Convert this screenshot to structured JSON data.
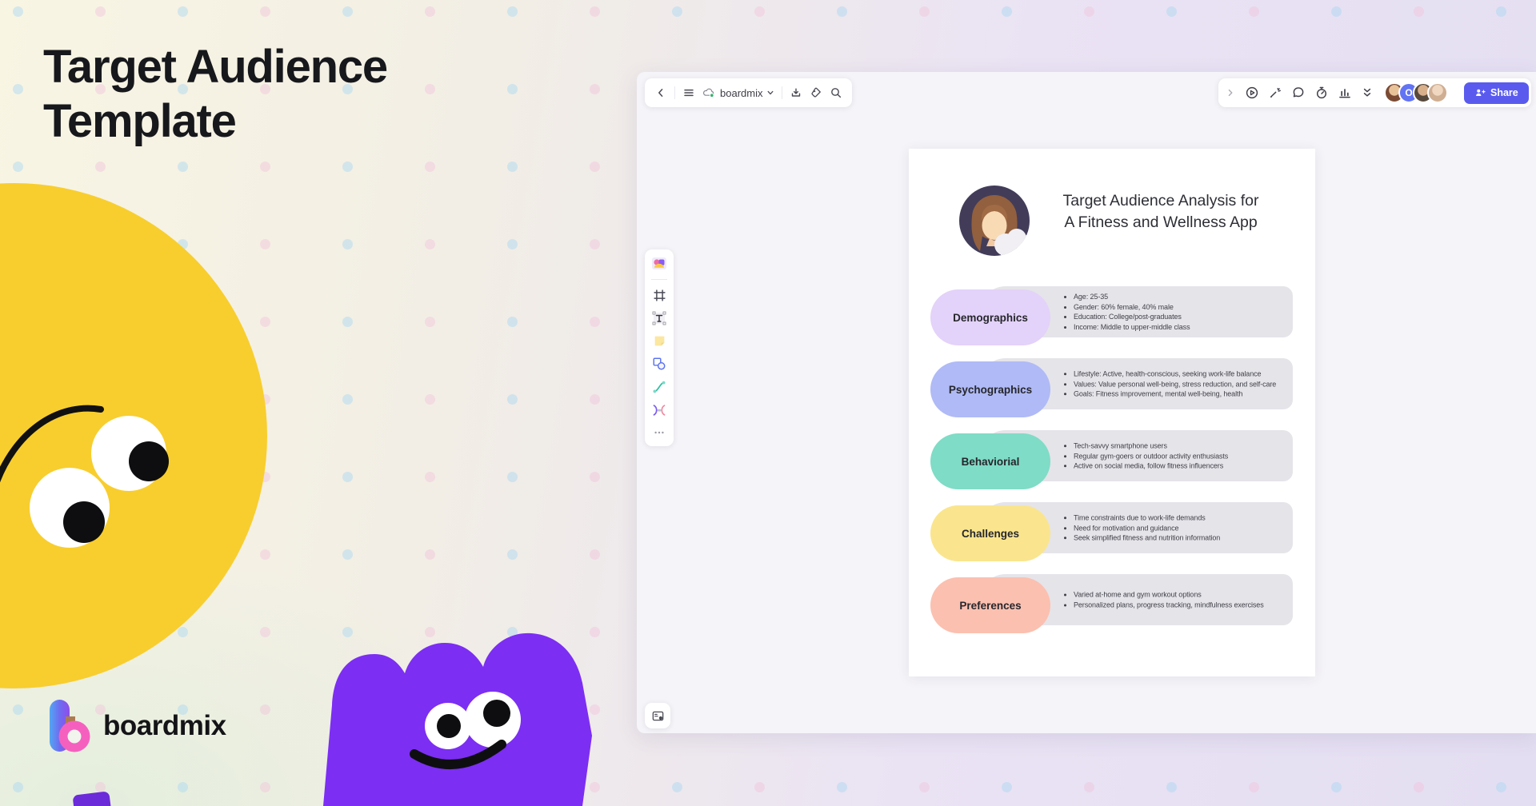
{
  "hero": {
    "title_line1": "Target Audience",
    "title_line2": "Template",
    "brand": "boardmix"
  },
  "app": {
    "topbar": {
      "board_name": "boardmix",
      "icons": [
        "back-icon",
        "menu-icon",
        "cloud-sync-icon",
        "chevron-down-icon",
        "export-icon",
        "tag-icon",
        "search-icon"
      ]
    },
    "right_toolbar": {
      "icons": [
        "collapse-icon",
        "play-icon",
        "laser-pointer-icon",
        "comment-icon",
        "timer-icon",
        "chart-icon",
        "double-chevron-down-icon"
      ],
      "avatars": [
        {
          "type": "photo",
          "tone": "#7a4a33",
          "skin": "#e8c39a"
        },
        {
          "type": "initial",
          "label": "O",
          "color": "#6273F3"
        },
        {
          "type": "photo",
          "tone": "#57493c",
          "skin": "#d9b08c"
        },
        {
          "type": "photo",
          "tone": "#cfae92",
          "skin": "#f0d7c0"
        }
      ],
      "share_label": "Share",
      "help_label": "?"
    },
    "left_toolbar": {
      "icons": [
        "templates-icon",
        "frame-icon",
        "text-icon",
        "sticky-note-icon",
        "shape-icon",
        "connector-icon",
        "mindmap-icon",
        "more-icon"
      ]
    },
    "board": {
      "title_line1": "Target Audience Analysis for",
      "title_line2": "A Fitness and Wellness App",
      "rows": [
        {
          "label": "Demographics",
          "color": "#E3D2F9",
          "items": [
            "Age: 25-35",
            "Gender: 60% female, 40% male",
            "Education: College/post-graduates",
            "Income: Middle to upper-middle class"
          ]
        },
        {
          "label": "Psychographics",
          "color": "#AFBAF6",
          "items": [
            "Lifestyle: Active, health-conscious, seeking work-life balance",
            "Values: Value personal well-being, stress reduction, and self-care",
            "Goals: Fitness improvement, mental well-being, health"
          ]
        },
        {
          "label": "Behaviorial",
          "color": "#7FDCC6",
          "items": [
            "Tech-savvy smartphone users",
            "Regular gym-goers or outdoor activity enthusiasts",
            "Active on social media, follow fitness influencers"
          ]
        },
        {
          "label": "Challenges",
          "color": "#FAE58E",
          "items": [
            "Time constraints due to work-life demands",
            "Need for motivation and guidance",
            "Seek simplified fitness and nutrition information"
          ]
        },
        {
          "label": "Preferences",
          "color": "#FBC0B0",
          "items": [
            "Varied at-home and gym workout options",
            "Personalized plans, progress tracking, mindfulness exercises"
          ]
        }
      ]
    }
  }
}
